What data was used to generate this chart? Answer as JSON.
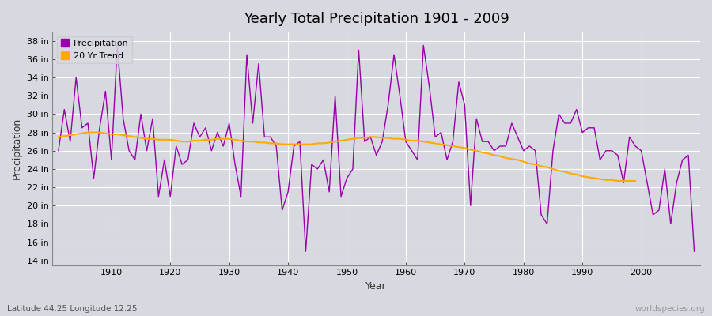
{
  "title": "Yearly Total Precipitation 1901 - 2009",
  "xlabel": "Year",
  "ylabel": "Precipitation",
  "bottom_left_label": "Latitude 44.25 Longitude 12.25",
  "bottom_right_label": "worldspecies.org",
  "precipitation_color": "#9900aa",
  "trend_color": "#ffaa00",
  "background_color": "#d8d8e0",
  "plot_bg_color": "#d8d8e0",
  "ylim": [
    13.5,
    39.0
  ],
  "ytick_labels": [
    "14 in",
    "16 in",
    "18 in",
    "20 in",
    "22 in",
    "24 in",
    "26 in",
    "28 in",
    "30 in",
    "32 in",
    "34 in",
    "36 in",
    "38 in"
  ],
  "ytick_values": [
    14,
    16,
    18,
    20,
    22,
    24,
    26,
    28,
    30,
    32,
    34,
    36,
    38
  ],
  "xtick_values": [
    1910,
    1920,
    1930,
    1940,
    1950,
    1960,
    1970,
    1980,
    1990,
    2000
  ],
  "years": [
    1901,
    1902,
    1903,
    1904,
    1905,
    1906,
    1907,
    1908,
    1909,
    1910,
    1911,
    1912,
    1913,
    1914,
    1915,
    1916,
    1917,
    1918,
    1919,
    1920,
    1921,
    1922,
    1923,
    1924,
    1925,
    1926,
    1927,
    1928,
    1929,
    1930,
    1931,
    1932,
    1933,
    1934,
    1935,
    1936,
    1937,
    1938,
    1939,
    1940,
    1941,
    1942,
    1943,
    1944,
    1945,
    1946,
    1947,
    1948,
    1949,
    1950,
    1951,
    1952,
    1953,
    1954,
    1955,
    1956,
    1957,
    1958,
    1959,
    1960,
    1961,
    1962,
    1963,
    1964,
    1965,
    1966,
    1967,
    1968,
    1969,
    1970,
    1971,
    1972,
    1973,
    1974,
    1975,
    1976,
    1977,
    1978,
    1979,
    1980,
    1981,
    1982,
    1983,
    1984,
    1985,
    1986,
    1987,
    1988,
    1989,
    1990,
    1991,
    1992,
    1993,
    1994,
    1995,
    1996,
    1997,
    1998,
    1999,
    2000,
    2001,
    2002,
    2003,
    2004,
    2005,
    2006,
    2007,
    2008,
    2009
  ],
  "precip": [
    26.0,
    30.5,
    27.0,
    34.0,
    28.5,
    29.0,
    23.0,
    28.5,
    32.5,
    25.0,
    37.5,
    29.5,
    26.0,
    25.0,
    30.0,
    26.0,
    29.5,
    21.0,
    25.0,
    21.0,
    26.5,
    24.5,
    25.0,
    29.0,
    27.5,
    28.5,
    26.0,
    28.0,
    26.5,
    29.0,
    24.5,
    21.0,
    36.5,
    29.0,
    35.5,
    27.5,
    27.5,
    26.5,
    19.5,
    21.5,
    26.5,
    27.0,
    15.0,
    24.5,
    24.0,
    25.0,
    21.5,
    32.0,
    21.0,
    23.0,
    24.0,
    37.0,
    27.0,
    27.5,
    25.5,
    27.0,
    31.0,
    36.5,
    32.0,
    27.0,
    26.0,
    25.0,
    37.5,
    33.0,
    27.5,
    28.0,
    25.0,
    27.0,
    33.5,
    31.0,
    20.0,
    29.5,
    27.0,
    27.0,
    26.0,
    26.5,
    26.5,
    29.0,
    27.5,
    26.0,
    26.5,
    26.0,
    19.0,
    18.0,
    26.0,
    30.0,
    29.0,
    29.0,
    30.5,
    28.0,
    28.5,
    28.5,
    25.0,
    26.0,
    26.0,
    25.5,
    22.5,
    27.5,
    26.5,
    26.0,
    22.5,
    19.0,
    19.5,
    24.0,
    18.0,
    22.5,
    25.0,
    25.5,
    15.0
  ],
  "trend_years": [
    1901,
    1902,
    1903,
    1904,
    1905,
    1906,
    1907,
    1908,
    1909,
    1910,
    1911,
    1912,
    1913,
    1914,
    1915,
    1916,
    1917,
    1918,
    1919,
    1920,
    1921,
    1922,
    1923,
    1924,
    1925,
    1926,
    1927,
    1928,
    1929,
    1930,
    1931,
    1932,
    1933,
    1934,
    1935,
    1936,
    1937,
    1938,
    1939,
    1940,
    1941,
    1942,
    1943,
    1944,
    1945,
    1946,
    1947,
    1948,
    1949,
    1950,
    1951,
    1952,
    1953,
    1954,
    1955,
    1956,
    1957,
    1958,
    1959,
    1960,
    1961,
    1962,
    1963,
    1964,
    1965,
    1966,
    1967,
    1968,
    1969,
    1970,
    1971,
    1972,
    1973,
    1974,
    1975,
    1976,
    1977,
    1978,
    1979,
    1980,
    1981,
    1982,
    1983,
    1984,
    1985,
    1986,
    1987,
    1988,
    1989,
    1990,
    1991,
    1992,
    1993,
    1994,
    1995,
    1996,
    1997,
    1998,
    1999
  ],
  "trend": [
    27.5,
    27.6,
    27.7,
    27.8,
    27.9,
    28.0,
    28.0,
    28.0,
    27.9,
    27.8,
    27.8,
    27.7,
    27.6,
    27.5,
    27.4,
    27.3,
    27.3,
    27.2,
    27.2,
    27.2,
    27.1,
    27.0,
    27.0,
    27.1,
    27.1,
    27.2,
    27.2,
    27.3,
    27.3,
    27.3,
    27.2,
    27.1,
    27.0,
    27.0,
    26.9,
    26.9,
    26.8,
    26.8,
    26.7,
    26.7,
    26.7,
    26.7,
    26.7,
    26.7,
    26.8,
    26.8,
    26.9,
    27.0,
    27.1,
    27.2,
    27.3,
    27.4,
    27.4,
    27.5,
    27.5,
    27.4,
    27.4,
    27.3,
    27.3,
    27.2,
    27.1,
    27.1,
    27.0,
    26.9,
    26.8,
    26.7,
    26.6,
    26.5,
    26.4,
    26.3,
    26.1,
    26.0,
    25.8,
    25.7,
    25.5,
    25.4,
    25.2,
    25.1,
    25.0,
    24.8,
    24.6,
    24.5,
    24.3,
    24.2,
    24.0,
    23.8,
    23.7,
    23.5,
    23.4,
    23.2,
    23.1,
    23.0,
    22.9,
    22.8,
    22.8,
    22.7,
    22.7,
    22.7,
    22.7
  ]
}
